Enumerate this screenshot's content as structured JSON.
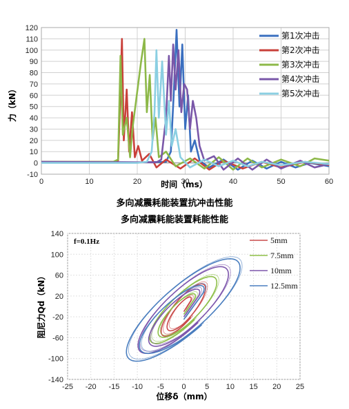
{
  "captions": [
    "多向减震耗能装置抗冲击性能",
    "多向减震耗能装置耗能性能"
  ],
  "chart_data": [
    {
      "type": "line",
      "title": "",
      "xlabel": "时间（ms）",
      "ylabel": "力（kN）",
      "xlim": [
        0,
        60
      ],
      "ylim": [
        -10,
        120
      ],
      "xticks": [
        0,
        10,
        20,
        30,
        40,
        50,
        60
      ],
      "yticks": [
        -10,
        0,
        10,
        20,
        30,
        40,
        50,
        60,
        70,
        80,
        90,
        100,
        110,
        120
      ],
      "grid": true,
      "legend_position": "top-right",
      "series": [
        {
          "name": "第1次冲击",
          "color": "#3a6fbf",
          "peak_x": 28.2,
          "peak": 118,
          "points": [
            [
              0,
              1
            ],
            [
              20,
              0.5
            ],
            [
              26,
              1
            ],
            [
              27,
              10
            ],
            [
              27.6,
              60
            ],
            [
              28.2,
              118
            ],
            [
              28.8,
              50
            ],
            [
              29.4,
              105
            ],
            [
              30,
              30
            ],
            [
              30.6,
              60
            ],
            [
              31.2,
              10
            ],
            [
              32,
              20
            ],
            [
              33,
              2
            ],
            [
              35,
              -4
            ],
            [
              38,
              3
            ],
            [
              41,
              -6
            ],
            [
              44,
              2
            ],
            [
              47,
              -5
            ],
            [
              50,
              1
            ],
            [
              53,
              -4
            ],
            [
              56,
              0
            ],
            [
              60,
              -3
            ]
          ]
        },
        {
          "name": "第2次冲击",
          "color": "#c9403a",
          "peak_x": 16.8,
          "peak": 110,
          "points": [
            [
              0,
              1
            ],
            [
              15,
              1
            ],
            [
              16,
              2
            ],
            [
              16.4,
              50
            ],
            [
              16.8,
              110
            ],
            [
              17.2,
              20
            ],
            [
              17.8,
              65
            ],
            [
              18.3,
              10
            ],
            [
              18.9,
              45
            ],
            [
              19.5,
              5
            ],
            [
              20.2,
              15
            ],
            [
              21,
              2
            ],
            [
              22.5,
              8
            ],
            [
              24,
              -4
            ],
            [
              26,
              3
            ],
            [
              29,
              -5
            ],
            [
              32,
              4
            ],
            [
              35,
              -6
            ],
            [
              38,
              2
            ],
            [
              42,
              -5
            ],
            [
              46,
              1
            ],
            [
              50,
              -4
            ],
            [
              55,
              1
            ],
            [
              60,
              -2
            ]
          ]
        },
        {
          "name": "第3次冲击",
          "color": "#8db848",
          "peak_x": 21.5,
          "peak": 110,
          "points": [
            [
              0,
              1
            ],
            [
              15,
              1
            ],
            [
              16,
              3
            ],
            [
              16.5,
              95
            ],
            [
              17,
              25
            ],
            [
              17.8,
              40
            ],
            [
              18.5,
              5
            ],
            [
              19,
              30
            ],
            [
              20.2,
              70
            ],
            [
              20.8,
              90
            ],
            [
              21.5,
              110
            ],
            [
              22,
              45
            ],
            [
              22.6,
              78
            ],
            [
              23.2,
              20
            ],
            [
              23.8,
              40
            ],
            [
              24.5,
              5
            ],
            [
              26,
              10
            ],
            [
              28,
              -3
            ],
            [
              31,
              4
            ],
            [
              34,
              -5
            ],
            [
              37,
              5
            ],
            [
              40,
              -6
            ],
            [
              43,
              4
            ],
            [
              46,
              -4
            ],
            [
              50,
              3
            ],
            [
              54,
              -3
            ],
            [
              57,
              4
            ],
            [
              60,
              2
            ]
          ]
        },
        {
          "name": "第4次冲击",
          "color": "#7a57a8",
          "peak_x": 27.5,
          "peak": 105,
          "points": [
            [
              0,
              1
            ],
            [
              24,
              0.5
            ],
            [
              25,
              3
            ],
            [
              26,
              40
            ],
            [
              26.6,
              95
            ],
            [
              27,
              55
            ],
            [
              27.5,
              105
            ],
            [
              28,
              65
            ],
            [
              28.6,
              100
            ],
            [
              29.2,
              45
            ],
            [
              29.8,
              70
            ],
            [
              30.4,
              65
            ],
            [
              31,
              30
            ],
            [
              31.6,
              55
            ],
            [
              32.3,
              40
            ],
            [
              33,
              15
            ],
            [
              34,
              2
            ],
            [
              36,
              6
            ],
            [
              38,
              -6
            ],
            [
              41,
              4
            ],
            [
              44,
              -6
            ],
            [
              47,
              3
            ],
            [
              50,
              -5
            ],
            [
              54,
              2
            ],
            [
              57,
              -4
            ],
            [
              60,
              -1
            ]
          ]
        },
        {
          "name": "第5次冲击",
          "color": "#8bcfe2",
          "peak_x": 24,
          "peak": 100,
          "points": [
            [
              0,
              0
            ],
            [
              20,
              0
            ],
            [
              22,
              1
            ],
            [
              23,
              10
            ],
            [
              23.6,
              45
            ],
            [
              24,
              100
            ],
            [
              24.5,
              40
            ],
            [
              25.2,
              90
            ],
            [
              26,
              25
            ],
            [
              26.6,
              55
            ],
            [
              27.2,
              15
            ],
            [
              28,
              30
            ],
            [
              29,
              5
            ],
            [
              31,
              -4
            ],
            [
              34,
              3
            ],
            [
              37,
              -3
            ],
            [
              40,
              2
            ],
            [
              43,
              -3
            ],
            [
              46,
              1
            ],
            [
              50,
              -2
            ],
            [
              55,
              1
            ],
            [
              60,
              -1
            ]
          ]
        }
      ]
    },
    {
      "type": "line",
      "title": "",
      "xlabel": "位移δ（mm）",
      "ylabel": "阻尼力Qd（kN）",
      "annotation": "f=0.1Hz",
      "xlim": [
        -25,
        25
      ],
      "ylim": [
        -140,
        140
      ],
      "xticks": [
        -25,
        -20,
        -15,
        -10,
        -5,
        0,
        5,
        10,
        15,
        20,
        25
      ],
      "yticks": [
        -140,
        -100,
        -60,
        -20,
        20,
        60,
        100,
        140
      ],
      "grid": true,
      "legend_position": "top-right",
      "series": [
        {
          "name": "5mm",
          "color": "#c94a4a",
          "amplitude_mm": 5,
          "force_kN": 52,
          "lag_deg": 55,
          "spiral": 0.25
        },
        {
          "name": "7.5mm",
          "color": "#8dbf47",
          "amplitude_mm": 7.5,
          "force_kN": 66,
          "lag_deg": 55,
          "spiral": 0.2
        },
        {
          "name": "10mm",
          "color": "#7d56ac",
          "amplitude_mm": 10,
          "force_kN": 85,
          "lag_deg": 55,
          "spiral": 0.15
        },
        {
          "name": "12.5mm",
          "color": "#4a7ebf",
          "amplitude_mm": 12.5,
          "force_kN": 100,
          "lag_deg": 55,
          "spiral": 0.12
        }
      ]
    }
  ]
}
